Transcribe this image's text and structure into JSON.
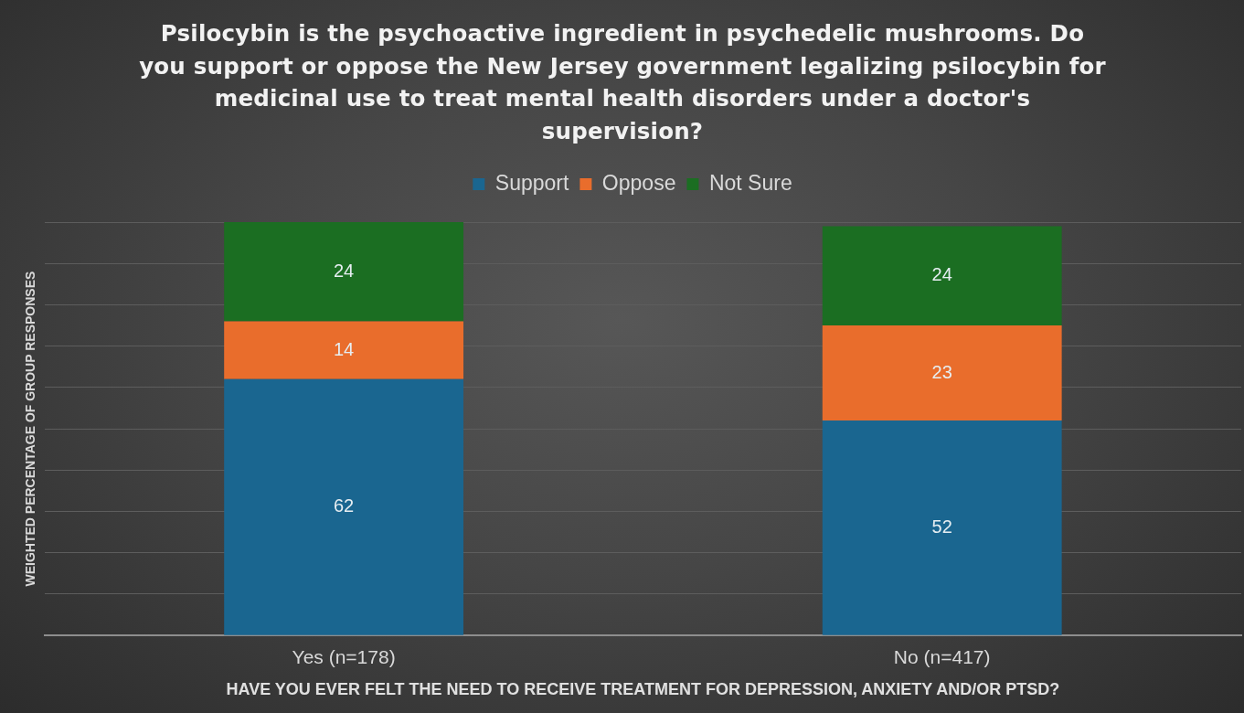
{
  "chart_data": {
    "type": "bar",
    "title": "Psilocybin is the psychoactive ingredient in psychedelic mushrooms. Do you support or oppose the New Jersey government legalizing psilocybin for medicinal use to treat mental health disorders under a doctor's supervision?",
    "xlabel": "HAVE YOU EVER FELT THE NEED TO RECEIVE TREATMENT FOR DEPRESSION, ANXIETY AND/OR PTSD?",
    "ylabel": "WEIGHTED PERCENTAGE OF GROUP RESPONSES",
    "categories": [
      "Yes (n=178)",
      "No (n=417)"
    ],
    "series": [
      {
        "name": "Support",
        "color": "#1a6690",
        "values": [
          62,
          52
        ]
      },
      {
        "name": "Oppose",
        "color": "#e96d2c",
        "values": [
          14,
          23
        ]
      },
      {
        "name": "Not Sure",
        "color": "#1b6e22",
        "values": [
          24,
          24
        ]
      }
    ],
    "stacked": true,
    "ylim": [
      0,
      100
    ],
    "yticks": [
      {
        "value": 0,
        "label": null
      },
      {
        "value": 10,
        "label": null
      },
      {
        "value": 20,
        "label": null
      },
      {
        "value": 30,
        "label": null
      },
      {
        "value": 40,
        "label": null
      },
      {
        "value": 50,
        "label": null
      },
      {
        "value": 60,
        "label": null
      },
      {
        "value": 70,
        "label": null
      },
      {
        "value": 80,
        "label": null
      },
      {
        "value": 90,
        "label": null
      },
      {
        "value": 100,
        "label": null
      }
    ],
    "grid": "y",
    "legend": "top",
    "tick_labels": "x",
    "data_labels": true
  }
}
